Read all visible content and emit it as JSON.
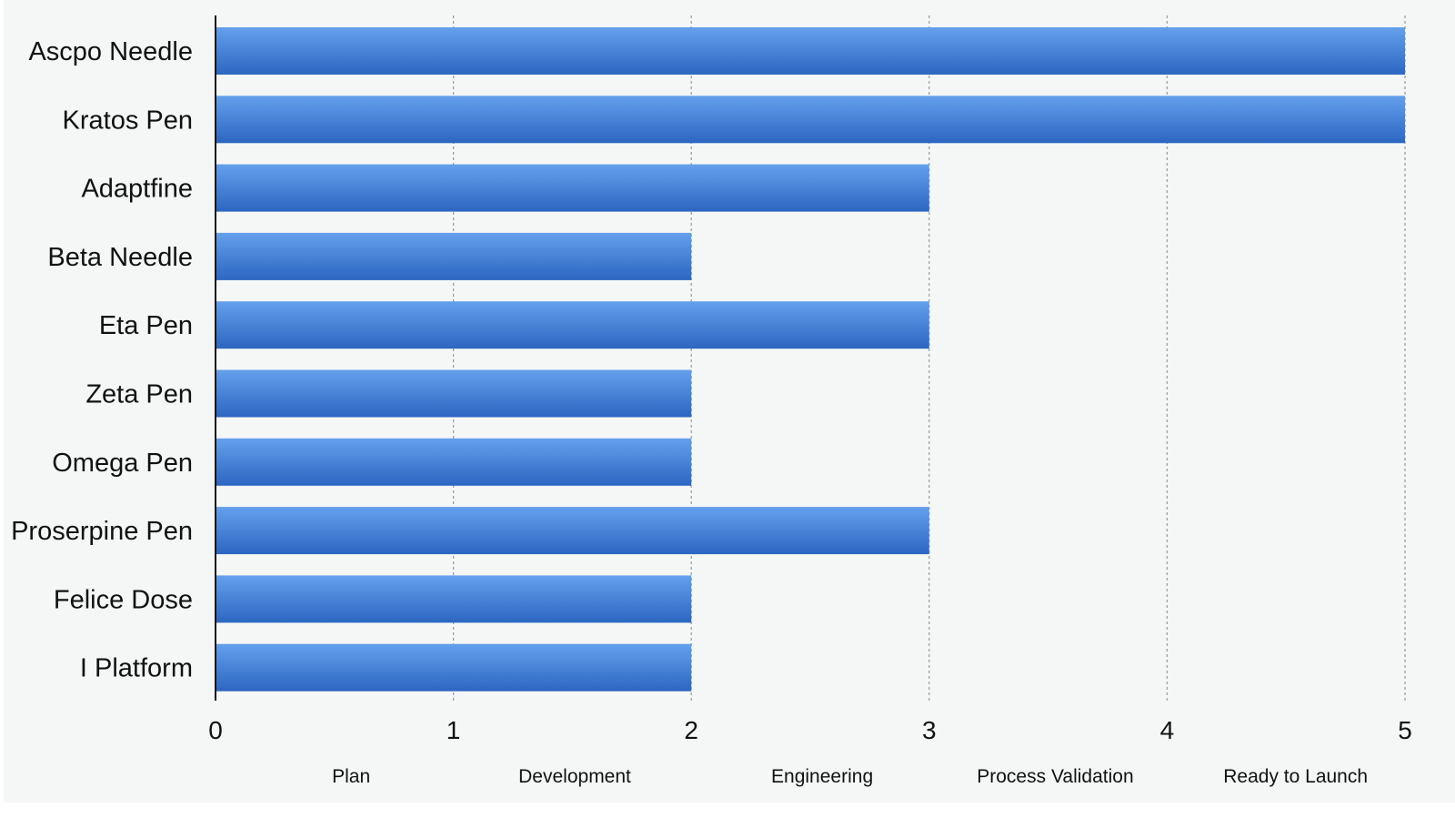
{
  "chart_data": {
    "type": "bar",
    "orientation": "horizontal",
    "categories": [
      "Ascpo Needle",
      "Kratos Pen",
      "Adaptfine",
      "Beta Needle",
      "Eta Pen",
      "Zeta Pen",
      "Omega Pen",
      "Proserpine Pen",
      "Felice Dose",
      "I Platform"
    ],
    "values": [
      5,
      5,
      3,
      2,
      3,
      2,
      2,
      3,
      2,
      2
    ],
    "xlim": [
      0,
      5
    ],
    "xticks": [
      "0",
      "1",
      "2",
      "3",
      "4",
      "5"
    ],
    "stage_labels": [
      "Plan",
      "Development",
      "Engineering",
      "Process Validation",
      "Ready to Launch"
    ],
    "grid": "vertical dashed",
    "bar_color_top": "#64a0ec",
    "bar_color_bottom": "#2c66c2",
    "grid_color": "#9aa0a6",
    "axis_color": "#111111"
  }
}
